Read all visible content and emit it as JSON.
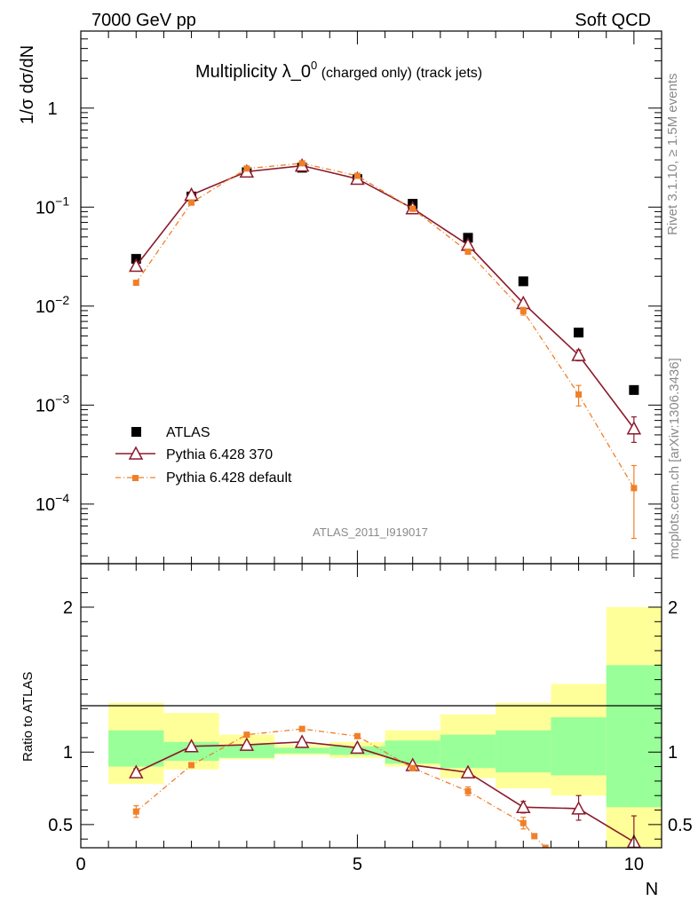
{
  "header": {
    "energy_label": "7000 GeV pp",
    "category_label": "Soft QCD"
  },
  "side_labels": {
    "rivet": "Rivet 3.1.10, ≥ 1.5M events",
    "mcplots": "mcplots.cern.ch [arXiv:1306.3436]"
  },
  "chart_data": [
    {
      "panel": "main",
      "type": "scatter",
      "title_main": "Multiplicity λ_0",
      "title_sup": "0",
      "title_sub": " (charged only) (track jets)",
      "ylabel": "1/σ dσ/dN",
      "yscale": "log",
      "ylim": [
        2.5e-05,
        6
      ],
      "xlim": [
        0,
        10.5
      ],
      "analysis_label": "ATLAS_2011_I919017",
      "y_ticks": [
        {
          "value": 1,
          "label": "1",
          "sup": ""
        },
        {
          "value": 0.1,
          "label": "10",
          "sup": "−1"
        },
        {
          "value": 0.01,
          "label": "10",
          "sup": "−2"
        },
        {
          "value": 0.001,
          "label": "10",
          "sup": "−3"
        },
        {
          "value": 0.0001,
          "label": "10",
          "sup": "−4"
        }
      ],
      "legend_position": "bottom-left",
      "series": [
        {
          "name": "ATLAS",
          "color": "#000000",
          "marker": "square",
          "x": [
            1,
            2,
            3,
            4,
            5,
            6,
            7,
            8,
            9,
            10
          ],
          "values": [
            0.03,
            0.128,
            0.225,
            0.25,
            0.192,
            0.108,
            0.049,
            0.0178,
            0.0054,
            0.00142
          ]
        },
        {
          "name": "Pythia 6.428 370",
          "color": "#8b1a2b",
          "marker": "triangle-open",
          "line": "solid",
          "x": [
            1,
            2,
            3,
            4,
            5,
            6,
            7,
            8,
            9,
            10
          ],
          "values": [
            0.0255,
            0.133,
            0.228,
            0.262,
            0.193,
            0.097,
            0.0415,
            0.0107,
            0.0032,
            0.00058
          ],
          "err_low": [
            0.0,
            0.0,
            0.0,
            0.0,
            0.0,
            0.0,
            0.002,
            0.0007,
            0.0004,
            0.00016
          ],
          "err_high": [
            0.0,
            0.0,
            0.0,
            0.0,
            0.0,
            0.0,
            0.002,
            0.0007,
            0.0004,
            0.00018
          ]
        },
        {
          "name": "Pythia 6.428 default",
          "color": "#f07f28",
          "marker": "square-small",
          "line": "dashdot",
          "x": [
            1,
            2,
            3,
            4,
            5,
            6,
            7,
            8,
            9,
            10
          ],
          "values": [
            0.0172,
            0.111,
            0.245,
            0.277,
            0.207,
            0.096,
            0.0355,
            0.0089,
            0.00128,
            0.000145
          ],
          "err_low": [
            0.0,
            0.0,
            0.0,
            0.0,
            0.0,
            0.0,
            0.002,
            0.0008,
            0.0003,
            0.0001
          ],
          "err_high": [
            0.0,
            0.0,
            0.0,
            0.0,
            0.0,
            0.0,
            0.002,
            0.0008,
            0.0003,
            0.0001
          ]
        }
      ]
    },
    {
      "panel": "ratio",
      "type": "line",
      "ylabel": "Ratio to ATLAS",
      "xlabel": "N",
      "ylim": [
        0.34,
        2.3
      ],
      "xlim": [
        0,
        10.5
      ],
      "y_ticks": [
        {
          "value": 0.5,
          "label": "0.5"
        },
        {
          "value": 1,
          "label": "1"
        },
        {
          "value": 2,
          "label": "2"
        }
      ],
      "x_ticks": [
        {
          "value": 0,
          "label": "0"
        },
        {
          "value": 5,
          "label": "5"
        },
        {
          "value": 10,
          "label": "10"
        }
      ],
      "bands": [
        {
          "x0": 0.5,
          "x1": 1.5,
          "inner": [
            0.9,
            1.15
          ],
          "outer": [
            0.78,
            1.34
          ]
        },
        {
          "x0": 1.5,
          "x1": 2.5,
          "inner": [
            0.94,
            1.07
          ],
          "outer": [
            0.88,
            1.27
          ]
        },
        {
          "x0": 2.5,
          "x1": 3.5,
          "inner": [
            0.96,
            1.05
          ],
          "outer": [
            0.95,
            1.12
          ]
        },
        {
          "x0": 3.5,
          "x1": 4.5,
          "inner": [
            0.99,
            1.03
          ],
          "outer": [
            0.98,
            1.05
          ]
        },
        {
          "x0": 4.5,
          "x1": 5.5,
          "inner": [
            0.98,
            1.04
          ],
          "outer": [
            0.96,
            1.07
          ]
        },
        {
          "x0": 5.5,
          "x1": 6.5,
          "inner": [
            0.92,
            1.08
          ],
          "outer": [
            0.9,
            1.15
          ]
        },
        {
          "x0": 6.5,
          "x1": 7.5,
          "inner": [
            0.89,
            1.12
          ],
          "outer": [
            0.82,
            1.26
          ]
        },
        {
          "x0": 7.5,
          "x1": 8.5,
          "inner": [
            0.86,
            1.15
          ],
          "outer": [
            0.75,
            1.34
          ]
        },
        {
          "x0": 8.5,
          "x1": 9.5,
          "inner": [
            0.84,
            1.24
          ],
          "outer": [
            0.7,
            1.47
          ]
        },
        {
          "x0": 9.5,
          "x1": 10.5,
          "inner": [
            0.62,
            1.6
          ],
          "outer": [
            0.34,
            2.0
          ]
        }
      ],
      "series": [
        {
          "name": "Pythia 6.428 370",
          "color": "#8b1a2b",
          "marker": "triangle-open",
          "line": "solid",
          "x": [
            1,
            2,
            3,
            4,
            5,
            6,
            7,
            8,
            9,
            10
          ],
          "values": [
            0.86,
            1.04,
            1.05,
            1.07,
            1.03,
            0.91,
            0.86,
            0.62,
            0.61,
            0.38
          ],
          "err_low": [
            0.025,
            0.0,
            0.0,
            0.0,
            0.0,
            0.0,
            0.02,
            0.04,
            0.08,
            0.1
          ],
          "err_high": [
            0.025,
            0.0,
            0.0,
            0.0,
            0.0,
            0.0,
            0.02,
            0.04,
            0.09,
            0.18
          ]
        },
        {
          "name": "Pythia 6.428 default",
          "color": "#f07f28",
          "marker": "square-small",
          "line": "dashdot",
          "x": [
            1,
            2,
            3,
            4,
            5,
            6,
            7,
            8,
            8.2,
            8.4
          ],
          "values": [
            0.59,
            0.91,
            1.12,
            1.16,
            1.11,
            0.89,
            0.73,
            0.51,
            0.42,
            0.34
          ],
          "err_low": [
            0.04,
            0.0,
            0.0,
            0.0,
            0.0,
            0.0,
            0.03,
            0.04,
            0.0,
            0.0
          ],
          "err_high": [
            0.04,
            0.0,
            0.0,
            0.0,
            0.0,
            0.0,
            0.03,
            0.04,
            0.0,
            0.0
          ]
        }
      ]
    }
  ],
  "colors": {
    "band_inner": "#99ff99",
    "band_outer": "#ffff99",
    "atlas": "#000000",
    "pythia370": "#8b1a2b",
    "pythia_default": "#f07f28"
  }
}
